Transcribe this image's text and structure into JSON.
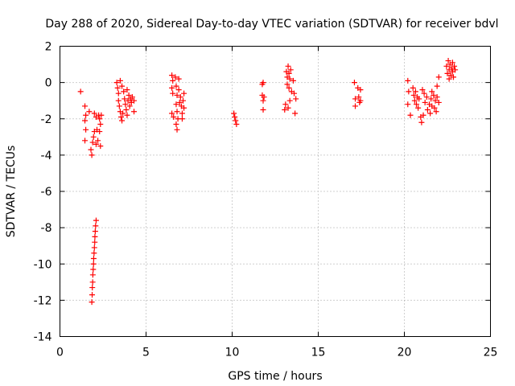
{
  "chart_data": {
    "type": "scatter",
    "title": "Day 288 of 2020, Sidereal Day-to-day VTEC variation (SDTVAR) for receiver bdvl",
    "xlabel": "GPS time / hours",
    "ylabel": "SDTVAR / TECUs",
    "xlim": [
      0,
      25
    ],
    "ylim": [
      -14,
      2
    ],
    "xticks": [
      0,
      5,
      10,
      15,
      20,
      25
    ],
    "yticks": [
      -14,
      -12,
      -10,
      -8,
      -6,
      -4,
      -2,
      0,
      2
    ],
    "grid": true,
    "marker": "plus",
    "color": "#ff0000",
    "series": [
      {
        "name": "bdvl",
        "points": [
          [
            1.2,
            -0.5
          ],
          [
            1.45,
            -1.3
          ],
          [
            1.5,
            -1.8
          ],
          [
            1.45,
            -2.1
          ],
          [
            1.5,
            -2.6
          ],
          [
            1.45,
            -3.2
          ],
          [
            1.7,
            -1.6
          ],
          [
            1.8,
            -3.7
          ],
          [
            1.85,
            -4.0
          ],
          [
            1.9,
            -3.3
          ],
          [
            1.95,
            -3.0
          ],
          [
            2.0,
            -2.7
          ],
          [
            2.1,
            -3.4
          ],
          [
            2.2,
            -3.2
          ],
          [
            2.35,
            -3.5
          ],
          [
            2.0,
            -1.7
          ],
          [
            2.1,
            -1.9
          ],
          [
            2.25,
            -1.8
          ],
          [
            2.3,
            -2.0
          ],
          [
            2.35,
            -2.3
          ],
          [
            2.4,
            -1.8
          ],
          [
            2.15,
            -2.6
          ],
          [
            2.3,
            -2.7
          ],
          [
            1.85,
            -12.1
          ],
          [
            1.87,
            -11.7
          ],
          [
            1.88,
            -11.3
          ],
          [
            1.9,
            -11.0
          ],
          [
            1.91,
            -10.6
          ],
          [
            1.93,
            -10.3
          ],
          [
            1.95,
            -10.0
          ],
          [
            1.96,
            -9.7
          ],
          [
            1.98,
            -9.4
          ],
          [
            2.0,
            -9.1
          ],
          [
            2.02,
            -8.8
          ],
          [
            2.03,
            -8.5
          ],
          [
            2.05,
            -8.2
          ],
          [
            2.07,
            -7.9
          ],
          [
            2.1,
            -7.6
          ],
          [
            3.3,
            0.0
          ],
          [
            3.35,
            -0.3
          ],
          [
            3.4,
            -0.6
          ],
          [
            3.4,
            -1.0
          ],
          [
            3.45,
            -1.3
          ],
          [
            3.5,
            -1.6
          ],
          [
            3.55,
            -1.9
          ],
          [
            3.6,
            -2.1
          ],
          [
            3.5,
            0.1
          ],
          [
            3.6,
            -0.2
          ],
          [
            3.7,
            -0.5
          ],
          [
            3.75,
            -0.9
          ],
          [
            3.8,
            -1.2
          ],
          [
            3.85,
            -1.5
          ],
          [
            3.9,
            -1.8
          ],
          [
            3.95,
            -1.0
          ],
          [
            4.0,
            -0.7
          ],
          [
            4.05,
            -1.3
          ],
          [
            4.1,
            -0.9
          ],
          [
            4.15,
            -1.1
          ],
          [
            4.2,
            -0.8
          ],
          [
            4.3,
            -1.0
          ],
          [
            4.3,
            -1.6
          ],
          [
            3.65,
            -1.7
          ],
          [
            3.9,
            -0.4
          ],
          [
            6.5,
            0.4
          ],
          [
            6.55,
            0.1
          ],
          [
            6.5,
            -0.3
          ],
          [
            6.55,
            -0.6
          ],
          [
            6.5,
            -1.7
          ],
          [
            6.6,
            -1.9
          ],
          [
            6.7,
            0.3
          ],
          [
            6.75,
            -0.2
          ],
          [
            6.8,
            -0.7
          ],
          [
            6.75,
            -1.2
          ],
          [
            6.8,
            -1.6
          ],
          [
            6.85,
            -2.0
          ],
          [
            6.75,
            -2.3
          ],
          [
            6.8,
            -2.6
          ],
          [
            6.9,
            0.2
          ],
          [
            6.9,
            -0.4
          ],
          [
            7.0,
            -0.8
          ],
          [
            7.05,
            -1.3
          ],
          [
            7.1,
            -1.7
          ],
          [
            7.15,
            -1.0
          ],
          [
            7.2,
            -0.6
          ],
          [
            7.2,
            -1.4
          ],
          [
            7.1,
            -2.0
          ],
          [
            6.95,
            -1.1
          ],
          [
            10.1,
            -1.7
          ],
          [
            10.15,
            -1.9
          ],
          [
            10.2,
            -2.1
          ],
          [
            10.25,
            -2.3
          ],
          [
            11.75,
            -0.1
          ],
          [
            11.8,
            0.0
          ],
          [
            11.75,
            -0.7
          ],
          [
            11.8,
            -1.0
          ],
          [
            11.8,
            -1.5
          ],
          [
            11.85,
            -0.8
          ],
          [
            13.05,
            -1.5
          ],
          [
            13.1,
            -1.2
          ],
          [
            13.15,
            0.6
          ],
          [
            13.2,
            0.3
          ],
          [
            13.2,
            -0.1
          ],
          [
            13.25,
            0.9
          ],
          [
            13.25,
            -1.4
          ],
          [
            13.3,
            0.5
          ],
          [
            13.3,
            -0.3
          ],
          [
            13.35,
            0.2
          ],
          [
            13.35,
            -1.0
          ],
          [
            13.4,
            0.7
          ],
          [
            13.45,
            -0.5
          ],
          [
            13.55,
            0.1
          ],
          [
            13.6,
            -0.6
          ],
          [
            13.65,
            -1.7
          ],
          [
            13.7,
            -0.9
          ],
          [
            17.1,
            0.0
          ],
          [
            17.15,
            -0.9
          ],
          [
            17.15,
            -1.3
          ],
          [
            17.3,
            -0.3
          ],
          [
            17.35,
            -0.8
          ],
          [
            17.4,
            -1.1
          ],
          [
            17.45,
            -0.4
          ],
          [
            17.45,
            -1.0
          ],
          [
            20.2,
            0.1
          ],
          [
            20.25,
            -0.5
          ],
          [
            20.2,
            -1.2
          ],
          [
            20.35,
            -1.8
          ],
          [
            20.5,
            -0.3
          ],
          [
            20.55,
            -0.7
          ],
          [
            20.6,
            -1.0
          ],
          [
            20.65,
            -0.5
          ],
          [
            20.7,
            -1.2
          ],
          [
            20.75,
            -0.8
          ],
          [
            20.8,
            -1.4
          ],
          [
            20.85,
            -0.9
          ],
          [
            20.95,
            -1.9
          ],
          [
            21.0,
            -2.2
          ],
          [
            21.05,
            -0.4
          ],
          [
            21.1,
            -1.8
          ],
          [
            21.15,
            -0.6
          ],
          [
            21.2,
            -1.1
          ],
          [
            21.3,
            -0.8
          ],
          [
            21.35,
            -1.5
          ],
          [
            21.45,
            -1.2
          ],
          [
            21.5,
            -1.7
          ],
          [
            21.55,
            -0.9
          ],
          [
            21.6,
            -0.5
          ],
          [
            21.6,
            -1.3
          ],
          [
            21.7,
            -0.7
          ],
          [
            21.75,
            -1.4
          ],
          [
            21.8,
            -1.0
          ],
          [
            21.85,
            -1.6
          ],
          [
            21.9,
            -0.2
          ],
          [
            21.9,
            -0.8
          ],
          [
            22.0,
            0.3
          ],
          [
            22.0,
            -1.1
          ],
          [
            22.45,
            0.9
          ],
          [
            22.5,
            0.5
          ],
          [
            22.55,
            1.2
          ],
          [
            22.6,
            0.7
          ],
          [
            22.6,
            0.2
          ],
          [
            22.65,
            1.0
          ],
          [
            22.7,
            0.4
          ],
          [
            22.75,
            0.8
          ],
          [
            22.8,
            0.6
          ],
          [
            22.8,
            1.1
          ],
          [
            22.85,
            0.3
          ],
          [
            22.9,
            0.9
          ],
          [
            22.95,
            0.7
          ]
        ]
      }
    ]
  }
}
